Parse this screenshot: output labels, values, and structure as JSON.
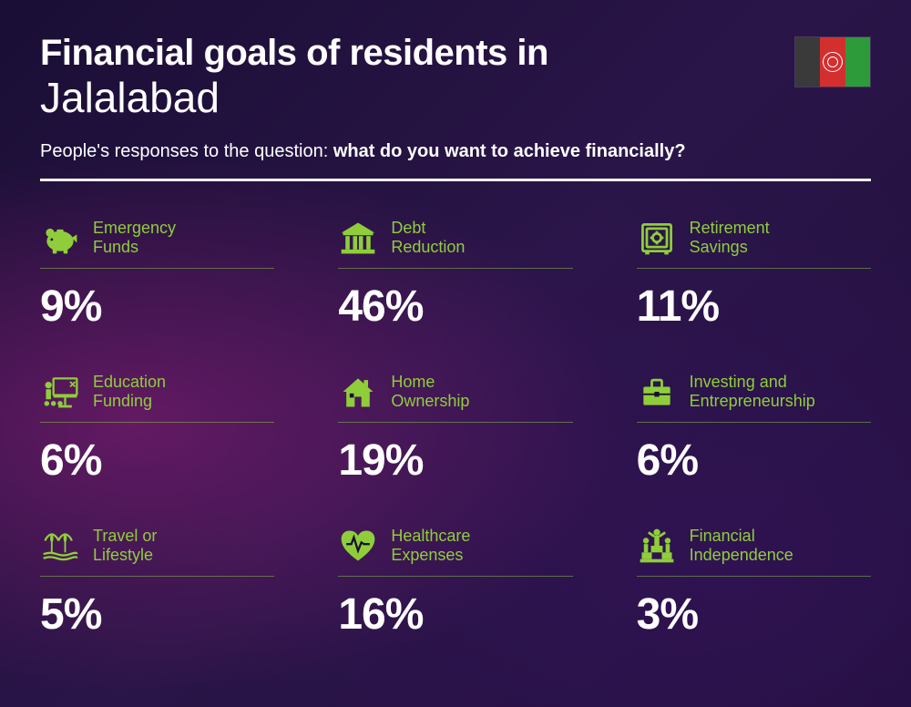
{
  "title_line1": "Financial goals of residents in",
  "title_line2": "Jalalabad",
  "subtitle_prefix": "People's responses to the question: ",
  "subtitle_bold": "what do you want to achieve financially?",
  "accent_color": "#8fce3a",
  "label_color": "#8fce3a",
  "percent_color": "#ffffff",
  "flag": {
    "stripes": [
      "#3a3a3a",
      "#d32f2f",
      "#2e9b3a"
    ]
  },
  "items": [
    {
      "icon": "piggy-bank",
      "label": "Emergency\nFunds",
      "percent": "9%"
    },
    {
      "icon": "bank",
      "label": "Debt\nReduction",
      "percent": "46%"
    },
    {
      "icon": "safe",
      "label": "Retirement\nSavings",
      "percent": "11%"
    },
    {
      "icon": "education",
      "label": "Education\nFunding",
      "percent": "6%"
    },
    {
      "icon": "home",
      "label": "Home\nOwnership",
      "percent": "19%"
    },
    {
      "icon": "briefcase",
      "label": "Investing and\nEntrepreneurship",
      "percent": "6%"
    },
    {
      "icon": "travel",
      "label": "Travel or\nLifestyle",
      "percent": "5%"
    },
    {
      "icon": "healthcare",
      "label": "Healthcare\nExpenses",
      "percent": "16%"
    },
    {
      "icon": "independence",
      "label": "Financial\nIndependence",
      "percent": "3%"
    }
  ]
}
